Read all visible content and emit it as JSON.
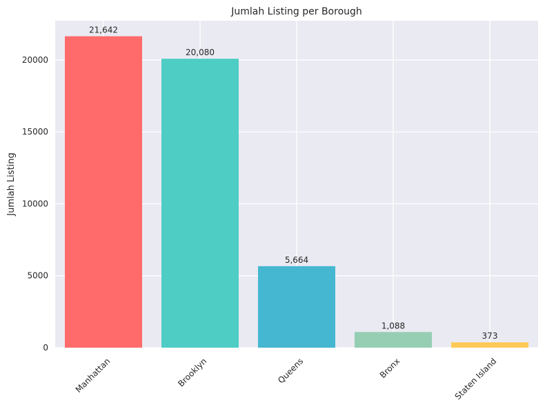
{
  "chart_data": {
    "type": "bar",
    "title": "Jumlah Listing per Borough",
    "xlabel": "",
    "ylabel": "Jumlah Listing",
    "categories": [
      "Manhattan",
      "Brooklyn",
      "Queens",
      "Bronx",
      "Staten Island"
    ],
    "values": [
      21642,
      20080,
      5664,
      1088,
      373
    ],
    "value_labels": [
      "21,642",
      "20,080",
      "5,664",
      "1,088",
      "373"
    ],
    "colors": [
      "#ff6b6b",
      "#4ecdc4",
      "#45b7d1",
      "#96ceb4",
      "#feca57"
    ],
    "ylim": [
      0,
      22724
    ],
    "yticks": [
      0,
      5000,
      10000,
      15000,
      20000
    ],
    "ytick_labels": [
      "0",
      "5000",
      "10000",
      "15000",
      "20000"
    ],
    "grid": true,
    "background": "#eaeaf2"
  }
}
